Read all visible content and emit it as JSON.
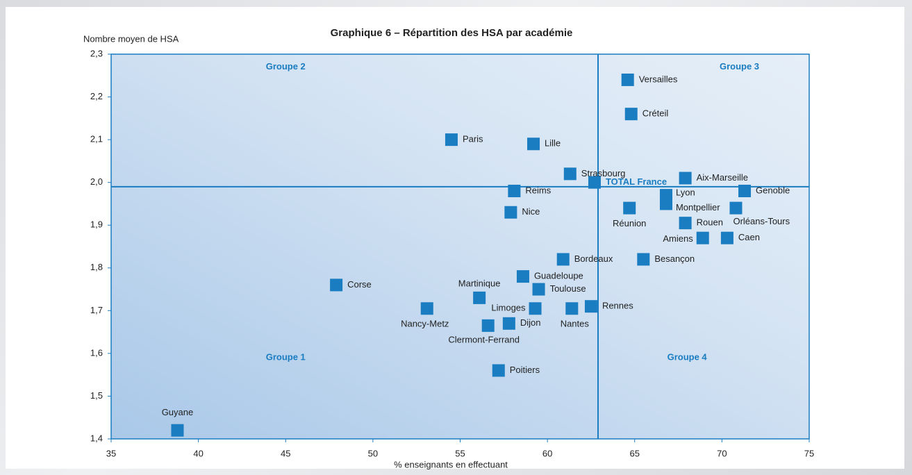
{
  "chart_data": {
    "type": "scatter",
    "title": "Graphique 6 – Répartition des HSA par académie",
    "ylabel": "Nombre moyen de HSA",
    "xlabel": "% enseignants en effectuant",
    "color": "#1a7cc1",
    "xlim": [
      35,
      75
    ],
    "xticks": [
      35,
      40,
      45,
      50,
      55,
      60,
      65,
      70,
      75
    ],
    "ylim": [
      1.4,
      2.3
    ],
    "yticks": [
      {
        "value": 1.4,
        "label": "1,4"
      },
      {
        "value": 1.5,
        "label": "1,5"
      },
      {
        "value": 1.6,
        "label": "1,6"
      },
      {
        "value": 1.7,
        "label": "1,7"
      },
      {
        "value": 1.8,
        "label": "1,8"
      },
      {
        "value": 1.9,
        "label": "1,9"
      },
      {
        "value": 2.0,
        "label": "2,0"
      },
      {
        "value": 2.1,
        "label": "2,1"
      },
      {
        "value": 2.2,
        "label": "2,2"
      },
      {
        "value": 2.3,
        "label": "2,3"
      }
    ],
    "reference_x": 62.9,
    "reference_y": 1.99,
    "annotations": [
      {
        "text": "Groupe 2",
        "x": 45,
        "y": 2.27
      },
      {
        "text": "Groupe 3",
        "x": 71,
        "y": 2.27
      },
      {
        "text": "Groupe 1",
        "x": 45,
        "y": 1.59
      },
      {
        "text": "Groupe 4",
        "x": 68,
        "y": 1.59
      }
    ],
    "points": [
      "Versailles",
      "Créteil",
      "Paris",
      "Lille",
      "Strasbourg",
      "TOTAL France",
      "Reims",
      "Nice",
      "Aix-Marseille",
      "Genoble",
      "Lyon",
      "Montpellier",
      "Réunion",
      "Orléans-Tours",
      "Rouen",
      "Amiens",
      "Caen",
      "Besançon",
      "Bordeaux",
      "Guadeloupe",
      "Toulouse",
      "Martinique",
      "Limoges",
      "Nantes",
      "Rennes",
      "Nancy-Metz",
      "Dijon",
      "Clermont-Ferrand",
      "Corse",
      "Poitiers",
      "Guyane"
    ],
    "x": [
      64.6,
      64.8,
      54.5,
      59.2,
      61.3,
      62.7,
      58.1,
      57.9,
      67.9,
      71.3,
      66.8,
      66.8,
      64.7,
      70.8,
      67.9,
      68.9,
      70.3,
      65.5,
      60.9,
      58.6,
      59.5,
      56.1,
      59.3,
      61.4,
      62.5,
      53.1,
      57.8,
      56.6,
      47.9,
      57.2,
      38.8
    ],
    "y": [
      2.24,
      2.16,
      2.1,
      2.09,
      2.02,
      2.0,
      1.98,
      1.93,
      2.01,
      1.98,
      1.97,
      1.95,
      1.94,
      1.94,
      1.905,
      1.87,
      1.87,
      1.82,
      1.82,
      1.78,
      1.75,
      1.73,
      1.705,
      1.705,
      1.71,
      1.705,
      1.67,
      1.665,
      1.76,
      1.56,
      1.42
    ]
  }
}
